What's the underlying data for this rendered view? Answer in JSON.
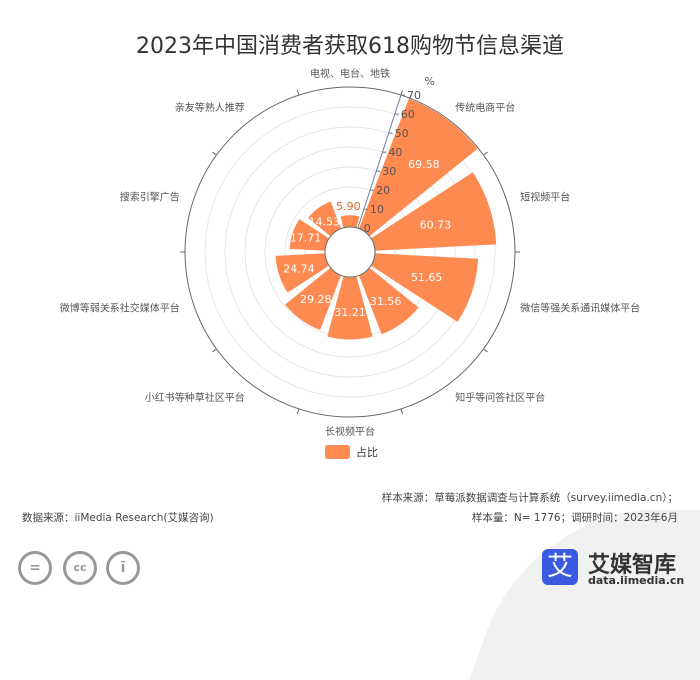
{
  "chart_data": {
    "type": "polar-bar",
    "title": "2023年中国消费者获取618购物节信息渠道",
    "categories": [
      "电视、电台、地铁",
      "传统电商平台",
      "短视频平台",
      "微信等强关系通讯媒体平台",
      "知乎等问答社区平台",
      "长视频平台",
      "小红书等种草社区平台",
      "微博等弱关系社交媒体平台",
      "搜索引擎广告",
      "亲友等熟人推荐"
    ],
    "values": [
      5.9,
      69.58,
      60.73,
      51.65,
      31.56,
      31.21,
      29.28,
      24.74,
      17.71,
      14.53
    ],
    "radial_unit": "%",
    "rlim": [
      0,
      70
    ],
    "rticks": [
      0,
      10,
      20,
      30,
      40,
      50,
      60,
      70
    ],
    "legend": [
      "占比"
    ],
    "legend_position": "bottom",
    "bar_color": "#fd8a51",
    "grid": true
  },
  "footer": {
    "source": "数据来源：iiMedia Research(艾媒咨询)",
    "sample_source": "样本来源：草莓派数据调查与计算系统（survey.iimedia.cn）；",
    "sample_size": "样本量：N= 1776；调研时间：2023年6月",
    "logo_char": "艾",
    "logo_name": "艾媒智库",
    "logo_url": "data.iimedia.cn"
  },
  "license_icons": [
    "nd-icon",
    "cc-icon",
    "by-icon"
  ]
}
